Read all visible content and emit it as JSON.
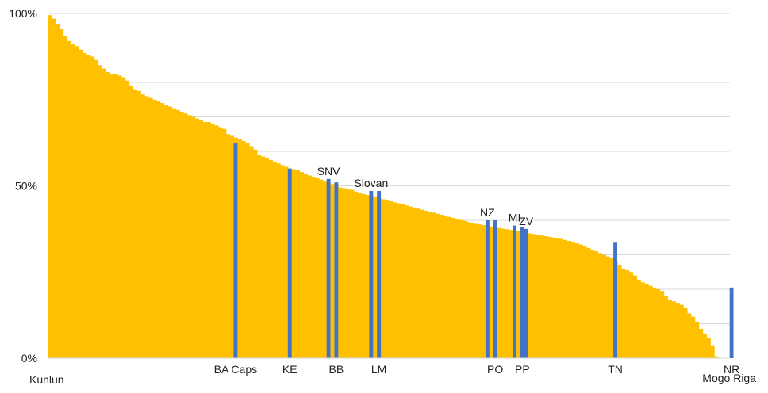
{
  "chart_data": {
    "type": "bar",
    "title": "",
    "xlabel": "",
    "ylabel": "",
    "ylim": [
      0,
      100
    ],
    "grid": true,
    "legend": "none",
    "y_ticks": [
      "0%",
      "50%",
      "100%"
    ],
    "x_end_labels": {
      "first": "Kunlun",
      "last": "Mogo Riga"
    },
    "colors": {
      "bars": "#FFC000",
      "highlight": "#4472C4",
      "grid": "#D9D9D9"
    },
    "values": [
      99.5,
      98.5,
      97.0,
      95.5,
      93.5,
      92.0,
      91.0,
      90.5,
      89.5,
      88.5,
      88.0,
      87.5,
      86.5,
      85.0,
      84.0,
      83.0,
      82.5,
      82.5,
      82.0,
      81.5,
      80.5,
      79.0,
      78.0,
      77.5,
      76.5,
      76.0,
      75.5,
      75.0,
      74.5,
      74.0,
      73.5,
      73.0,
      72.5,
      72.0,
      71.5,
      71.0,
      70.5,
      70.0,
      69.5,
      69.0,
      68.5,
      68.5,
      68.0,
      67.5,
      67.0,
      66.5,
      65.0,
      64.5,
      64.0,
      63.5,
      63.0,
      62.5,
      61.5,
      60.5,
      59.0,
      58.5,
      58.0,
      57.5,
      57.0,
      56.5,
      56.0,
      55.5,
      55.0,
      54.8,
      54.5,
      54.0,
      53.5,
      53.0,
      52.5,
      52.2,
      51.8,
      51.2,
      50.8,
      50.5,
      50.0,
      49.5,
      49.3,
      49.0,
      48.8,
      48.3,
      48.0,
      47.6,
      47.3,
      47.0,
      46.7,
      46.4,
      46.1,
      45.8,
      45.5,
      45.2,
      44.9,
      44.6,
      44.3,
      44.0,
      43.7,
      43.4,
      43.1,
      42.8,
      42.5,
      42.2,
      41.9,
      41.6,
      41.3,
      41.0,
      40.7,
      40.4,
      40.1,
      39.8,
      39.5,
      39.2,
      39.0,
      38.8,
      38.6,
      38.4,
      38.2,
      38.0,
      37.8,
      37.6,
      37.4,
      37.2,
      37.0,
      36.8,
      36.6,
      36.4,
      36.2,
      36.0,
      35.8,
      35.6,
      35.4,
      35.2,
      35.0,
      34.8,
      34.6,
      34.3,
      34.0,
      33.6,
      33.3,
      33.0,
      32.5,
      32.0,
      31.5,
      31.0,
      30.5,
      30.0,
      29.5,
      29.0,
      28.0,
      27.0,
      26.0,
      25.5,
      25.0,
      24.0,
      22.5,
      22.0,
      21.5,
      21.0,
      20.5,
      20.0,
      19.5,
      18.0,
      17.0,
      16.5,
      16.0,
      15.5,
      14.5,
      13.0,
      12.0,
      10.5,
      8.5,
      7.0,
      6.0,
      3.5,
      0.5
    ],
    "highlights": [
      {
        "index": 48,
        "value": 62.5,
        "label": "BA Caps",
        "label_pos": "below"
      },
      {
        "index": 62,
        "value": 55.0,
        "label": "KE",
        "label_pos": "below"
      },
      {
        "index": 72,
        "value": 52.0,
        "label": "SNV",
        "label_pos": "above"
      },
      {
        "index": 74,
        "value": 51.0,
        "label": "BB",
        "label_pos": "below"
      },
      {
        "index": 83,
        "value": 48.5,
        "label": "Slovan",
        "label_pos": "above"
      },
      {
        "index": 85,
        "value": 48.5,
        "label": "LM",
        "label_pos": "below"
      },
      {
        "index": 113,
        "value": 40.0,
        "label": "NZ",
        "label_pos": "above"
      },
      {
        "index": 115,
        "value": 40.0,
        "label": "PO",
        "label_pos": "below"
      },
      {
        "index": 120,
        "value": 38.5,
        "label": "MI",
        "label_pos": "above"
      },
      {
        "index": 122,
        "value": 38.0,
        "label": "PP",
        "label_pos": "below"
      },
      {
        "index": 123,
        "value": 37.5,
        "label": "ZV",
        "label_pos": "above"
      },
      {
        "index": 146,
        "value": 33.5,
        "label": "TN",
        "label_pos": "below"
      },
      {
        "index": 176,
        "value": 20.5,
        "label": "NR",
        "label_pos": "below"
      }
    ]
  }
}
